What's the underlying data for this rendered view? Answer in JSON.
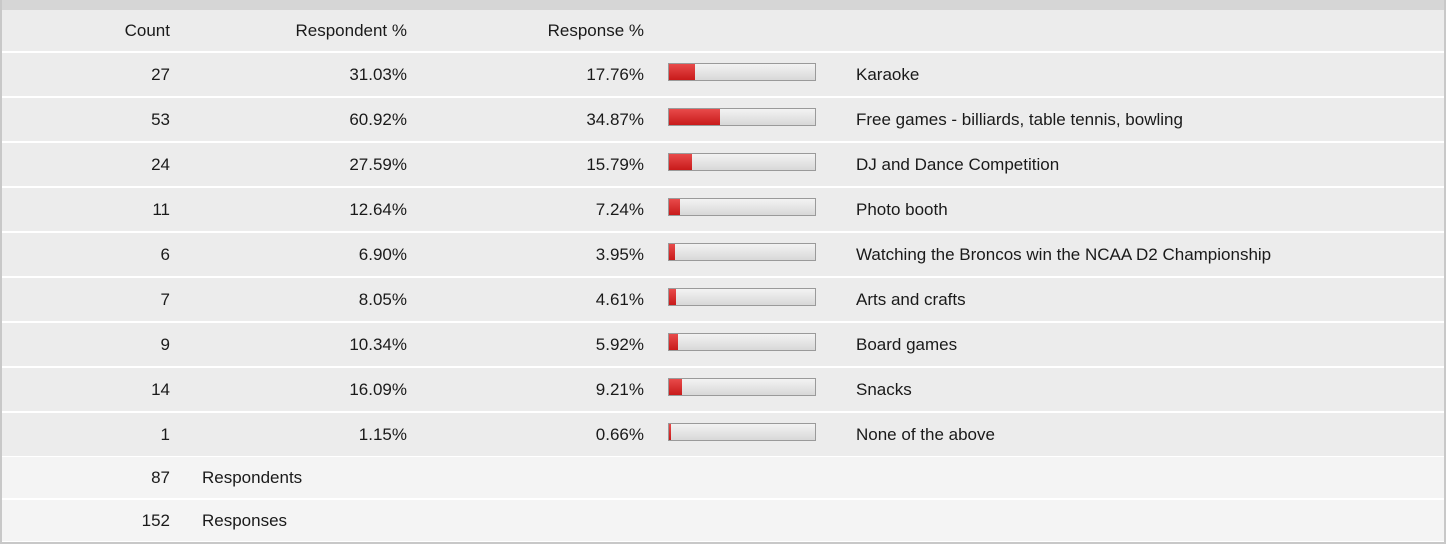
{
  "header": {
    "count": "Count",
    "respondent_pct": "Respondent %",
    "response_pct": "Response %"
  },
  "rows": [
    {
      "count": "27",
      "respondent_pct": "31.03%",
      "response_pct": "17.76%",
      "label": "Karaoke"
    },
    {
      "count": "53",
      "respondent_pct": "60.92%",
      "response_pct": "34.87%",
      "label": "Free games - billiards, table tennis, bowling"
    },
    {
      "count": "24",
      "respondent_pct": "27.59%",
      "response_pct": "15.79%",
      "label": "DJ and Dance Competition"
    },
    {
      "count": "11",
      "respondent_pct": "12.64%",
      "response_pct": "7.24%",
      "label": "Photo booth"
    },
    {
      "count": "6",
      "respondent_pct": "6.90%",
      "response_pct": "3.95%",
      "label": "Watching the Broncos win the NCAA D2 Championship"
    },
    {
      "count": "7",
      "respondent_pct": "8.05%",
      "response_pct": "4.61%",
      "label": "Arts and crafts"
    },
    {
      "count": "9",
      "respondent_pct": "10.34%",
      "response_pct": "5.92%",
      "label": "Board games"
    },
    {
      "count": "14",
      "respondent_pct": "16.09%",
      "response_pct": "9.21%",
      "label": "Snacks"
    },
    {
      "count": "1",
      "respondent_pct": "1.15%",
      "response_pct": "0.66%",
      "label": "None of the above"
    }
  ],
  "summary": [
    {
      "count": "87",
      "label": "Respondents"
    },
    {
      "count": "152",
      "label": "Responses"
    }
  ],
  "colors": {
    "bar_fill": "#d42a2a",
    "bar_track": "#e4e4e4",
    "row_bg": "#ececec",
    "summary_bg": "#f4f4f4"
  },
  "chart_data": {
    "type": "bar",
    "categories": [
      "Karaoke",
      "Free games - billiards, table tennis, bowling",
      "DJ and Dance Competition",
      "Photo booth",
      "Watching the Broncos win the NCAA D2 Championship",
      "Arts and crafts",
      "Board games",
      "Snacks",
      "None of the above"
    ],
    "values": [
      17.76,
      34.87,
      15.79,
      7.24,
      3.95,
      4.61,
      5.92,
      9.21,
      0.66
    ],
    "ylim": [
      0,
      100
    ]
  }
}
